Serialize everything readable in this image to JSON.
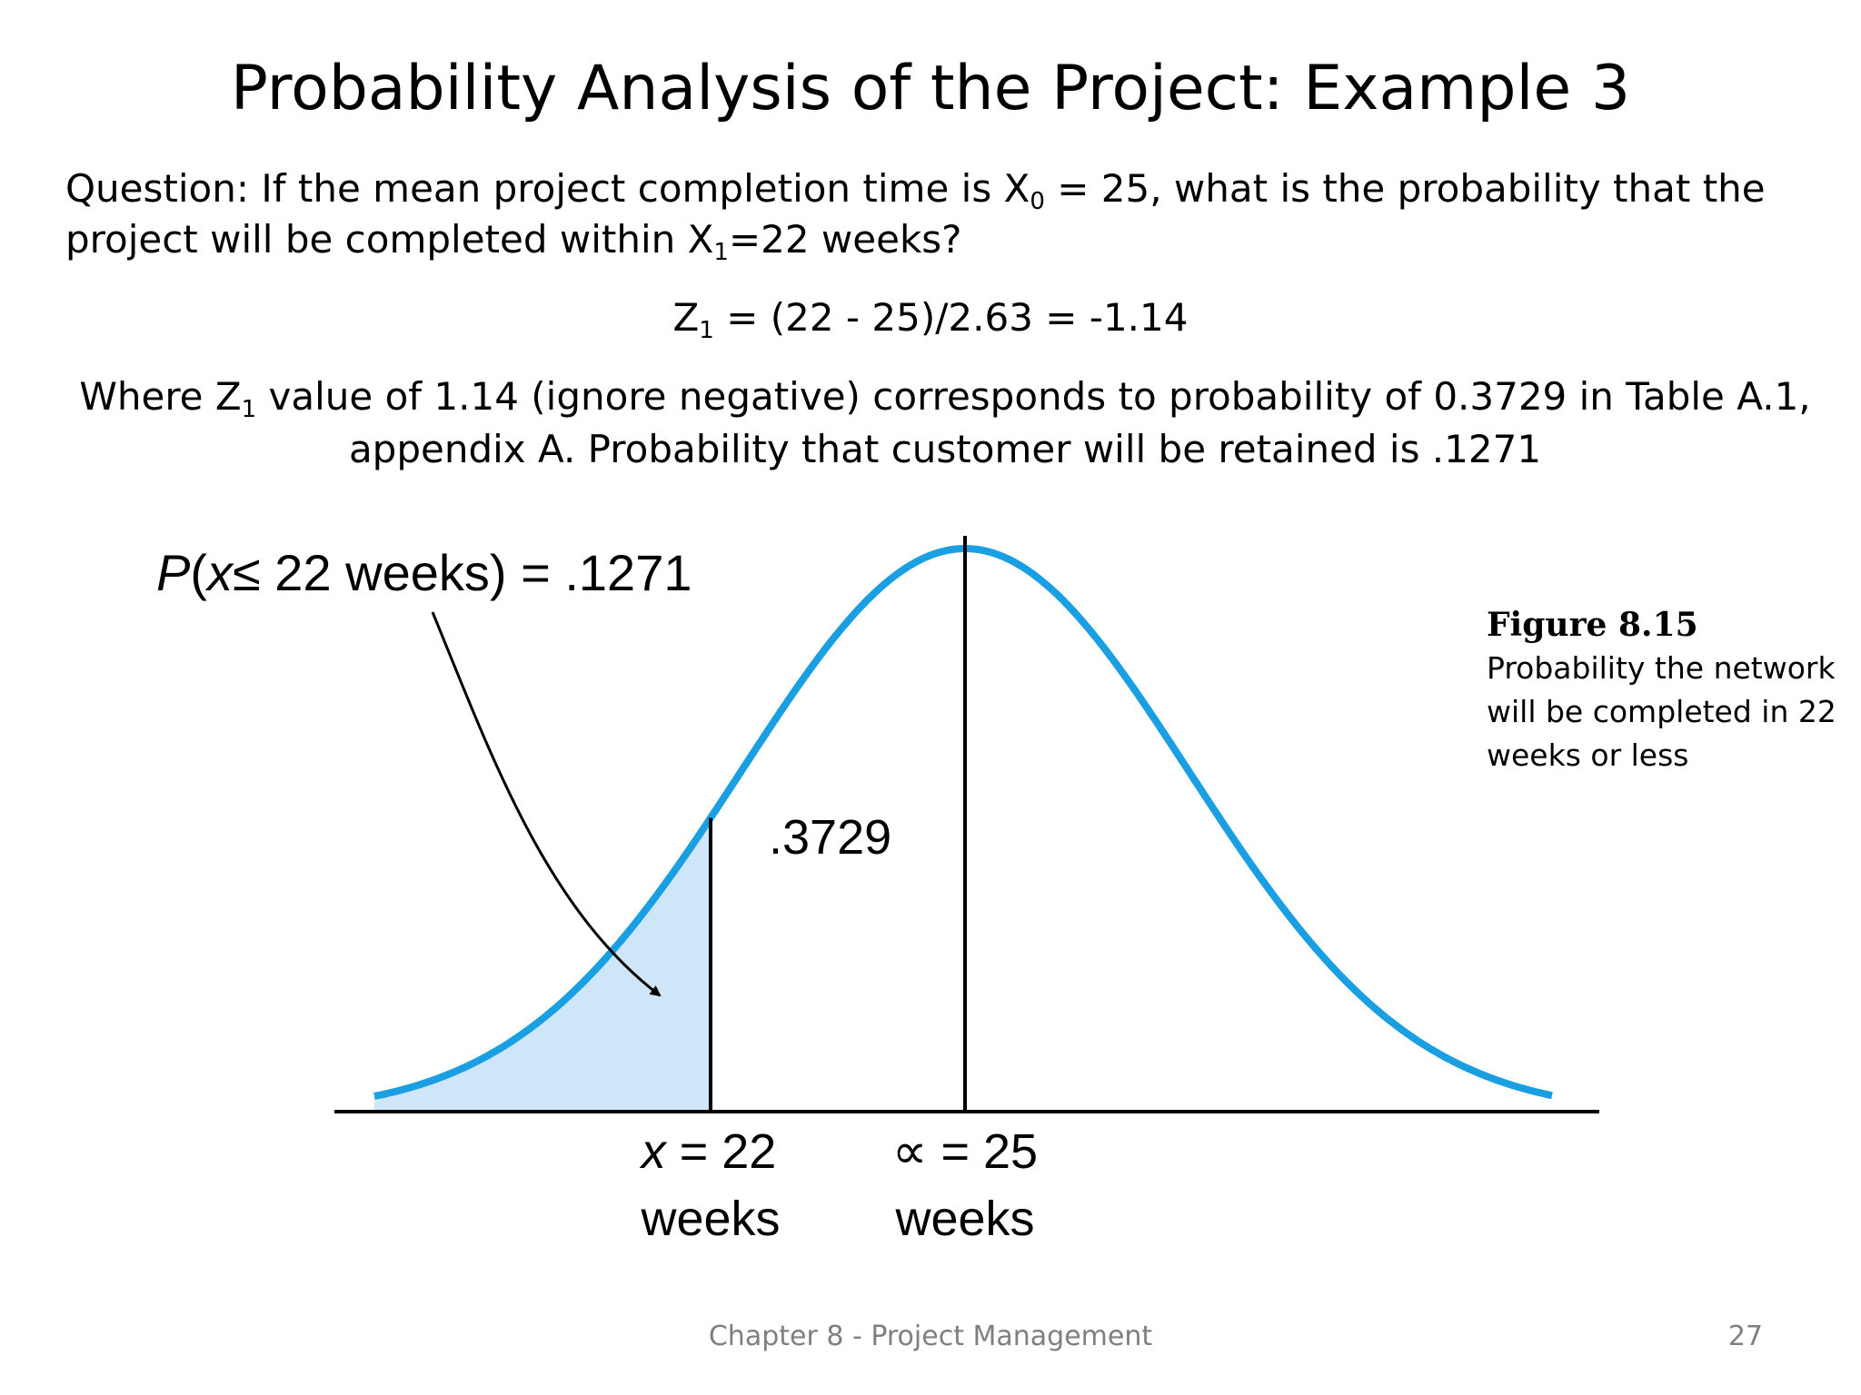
{
  "slide": {
    "title": "Probability Analysis of the Project: Example 3",
    "question_a": "Question: If the mean project completion time is X",
    "question_sub0": "0",
    "question_b": " = 25, what is the probability that the project will be completed within X",
    "question_sub1": "1",
    "question_c": "=22 weeks?",
    "formula_a": "Z",
    "formula_sub": "1",
    "formula_b": " = (22 - 25)/2.63 = -1.14",
    "explain_a": "Where Z",
    "explain_sub": "1",
    "explain_b": " value of 1.14 (ignore negative) corresponds to probability of 0.3729 in Table A.1, appendix A. Probability that customer will be retained is .1271"
  },
  "figure": {
    "prob_label_p": "P",
    "prob_label_a": "(",
    "prob_label_x": "x",
    "prob_label_b": "≤ 22 weeks) = .1271",
    "area_label": ".3729",
    "x_label_line1_var": "x",
    "x_label_line1_rest": " = 22",
    "x_label_line2": "weeks",
    "mean_label_line1": "∝ = 25",
    "mean_label_line2": "weeks",
    "caption_title": "Figure 8.15",
    "caption_text": "Probability the network will be completed in 22 weeks or less",
    "curve_color": "#1a9fe3",
    "shade_color": "#cfe6f9"
  },
  "footer": {
    "chapter": "Chapter 8 - Project Management",
    "page": "27"
  }
}
